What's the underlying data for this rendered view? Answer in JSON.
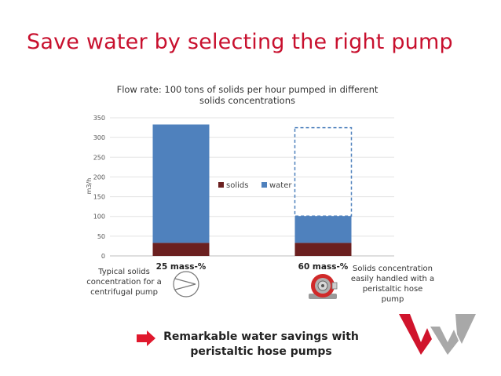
{
  "slide": {
    "title": "Save water by selecting the right pump",
    "note_left": "Typical solids concentration for a centrifugal pump",
    "note_right": "Solids concentration easily handled with a peristaltic hose pump",
    "callout": "Remarkable water savings with peristaltic hose pumps"
  },
  "icons": {
    "centrifugal_pump": "centrifugal-pump-icon",
    "peristaltic_pump": "peristaltic-hose-pump-icon",
    "arrow": "arrow-right-icon",
    "logo": "brand-logo-icon"
  },
  "colors": {
    "title": "#c8102e",
    "solids": "#6b2020",
    "water": "#4f81bd",
    "dashed_outline": "#4f81bd"
  },
  "chart_data": {
    "type": "bar",
    "stacked": true,
    "title": "Flow rate: 100 tons of solids per hour pumped in different solids concentrations",
    "title_lines": [
      "Flow rate: 100 tons of solids per hour pumped in different",
      "solids concentrations"
    ],
    "ylabel": "m3/h",
    "ylim": [
      0,
      350
    ],
    "yticks": [
      0,
      50,
      100,
      150,
      200,
      250,
      300,
      350
    ],
    "grid": true,
    "legend_position": "center",
    "categories": [
      "25 mass-%",
      "60 mass-%"
    ],
    "series": [
      {
        "name": "solids",
        "values": [
          33,
          33
        ]
      },
      {
        "name": "water",
        "values": [
          300,
          68
        ]
      }
    ],
    "dashed_reference_total": 325
  }
}
